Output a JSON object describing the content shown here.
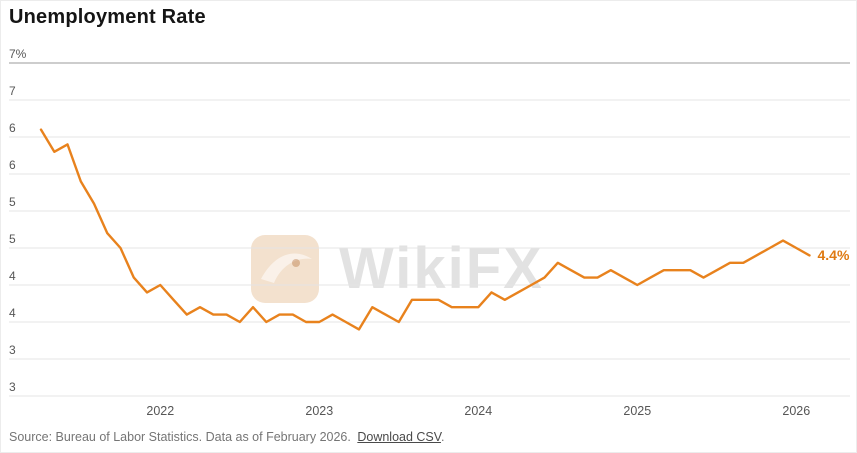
{
  "title": "Unemployment Rate",
  "watermark": {
    "text": "WikiFX"
  },
  "footer": {
    "source_text": "Source: Bureau of Labor Statistics. Data as of February 2026.",
    "link_text": "Download CSV",
    "suffix": "."
  },
  "colors": {
    "line": "#E8821D",
    "end_label": "#DF7A12",
    "grid": "#E4E4E4",
    "grid_top": "#9B9B9B",
    "axis_text": "#565656",
    "title": "#151515",
    "footer": "#757575",
    "watermark": "#D9D9D9",
    "background": "#FFFFFF"
  },
  "chart_data": {
    "type": "line",
    "title": "Unemployment Rate",
    "unit": "percent",
    "frequency": "monthly",
    "x_start": "2021-04",
    "x_end": "2026-02",
    "values": [
      6.1,
      5.8,
      5.9,
      5.4,
      5.1,
      4.7,
      4.5,
      4.1,
      3.9,
      4.0,
      3.8,
      3.6,
      3.7,
      3.6,
      3.6,
      3.5,
      3.7,
      3.5,
      3.6,
      3.6,
      3.5,
      3.5,
      3.6,
      3.5,
      3.4,
      3.7,
      3.6,
      3.5,
      3.8,
      3.8,
      3.8,
      3.7,
      3.7,
      3.7,
      3.9,
      3.8,
      3.9,
      4.0,
      4.1,
      4.3,
      4.2,
      4.1,
      4.1,
      4.2,
      4.1,
      4.0,
      4.1,
      4.2,
      4.2,
      4.2,
      4.1,
      4.2,
      4.3,
      4.3,
      4.4,
      4.5,
      4.6,
      4.5,
      4.4
    ],
    "y_gridlines": [
      {
        "value": 7.0,
        "label": "7%"
      },
      {
        "value": 6.5,
        "label": "7"
      },
      {
        "value": 6.0,
        "label": "6"
      },
      {
        "value": 5.5,
        "label": "6"
      },
      {
        "value": 5.0,
        "label": "5"
      },
      {
        "value": 4.5,
        "label": "5"
      },
      {
        "value": 4.0,
        "label": "4"
      },
      {
        "value": 3.5,
        "label": "4"
      },
      {
        "value": 3.0,
        "label": "3"
      },
      {
        "value": 2.5,
        "label": "3"
      }
    ],
    "x_ticks": [
      {
        "label": "2022",
        "month_index": 9
      },
      {
        "label": "2023",
        "month_index": 21
      },
      {
        "label": "2024",
        "month_index": 33
      },
      {
        "label": "2025",
        "month_index": 45
      },
      {
        "label": "2026",
        "month_index": 57
      }
    ],
    "ylim": [
      2.5,
      7.0
    ],
    "xlabel": "",
    "ylabel": "",
    "legend": false,
    "grid": true,
    "end_label": "4.4%"
  }
}
